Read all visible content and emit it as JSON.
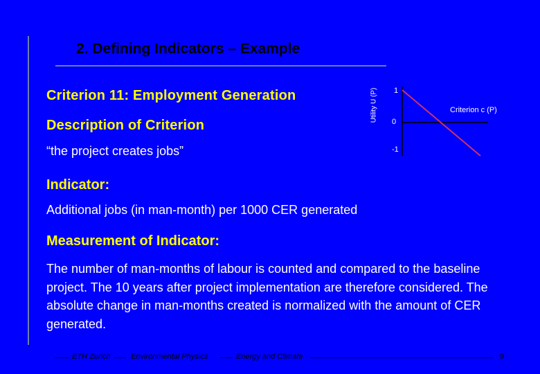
{
  "slide": {
    "title": "2. Defining Indicators – Example",
    "criterion_heading": "Criterion 11: Employment Generation",
    "description_heading": "Description of Criterion",
    "description_text": "“the project creates jobs”",
    "indicator_heading": "Indicator:",
    "indicator_text": "Additional jobs (in man-month) per 1000 CER generated",
    "measurement_heading": "Measurement of Indicator:",
    "measurement_text": "The number of man-months of labour is counted and compared to the baseline project. The 10 years after project implementation are therefore considered. The absolute change in man-months created is normalized with the amount of CER generated."
  },
  "chart_data": {
    "type": "line",
    "ylabel": "Utility U (P)",
    "xlabel": "Criterion c (P)",
    "y_ticks": [
      "1",
      "0",
      "-1"
    ],
    "ylim": [
      -1,
      1
    ],
    "series": [
      {
        "values": [
          1,
          -1
        ],
        "x": [
          0,
          1
        ],
        "color": "#cc3366"
      }
    ],
    "colors": {
      "axis": "#000000",
      "line": "#cc3366"
    }
  },
  "footer": {
    "org": "ETH Zurich",
    "department": "Environmental Physics",
    "topic": "Energy and Climate",
    "page_number": "9"
  },
  "colors": {
    "background": "#0000ff",
    "heading": "#ffff00",
    "body_text": "#ffffff",
    "title": "#000000",
    "rule": "#6e7fb0"
  }
}
